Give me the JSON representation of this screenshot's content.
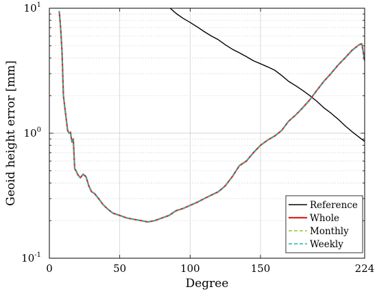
{
  "chart_data": {
    "type": "line",
    "xlabel": "Degree",
    "ylabel": "Geoid height error [mm]",
    "xlim": [
      0,
      224
    ],
    "ylim": [
      0.1,
      10
    ],
    "yscale": "log",
    "grid": true,
    "legend_position": "bottom-right",
    "xticks": [
      0,
      50,
      100,
      150,
      224
    ],
    "xtick_labels": [
      "0",
      "50",
      "100",
      "150",
      "224"
    ],
    "yticks": [
      0.1,
      1,
      10
    ],
    "ytick_labels": [
      "10",
      "10",
      "10"
    ],
    "ytick_exponents": [
      "-1",
      "0",
      "1"
    ],
    "series": [
      {
        "name": "Reference",
        "color": "#000000",
        "dash": "solid",
        "x": [
          85,
          90,
          95,
          100,
          105,
          110,
          115,
          120,
          125,
          130,
          135,
          140,
          145,
          150,
          155,
          160,
          165,
          170,
          175,
          180,
          185,
          190,
          195,
          200,
          205,
          210,
          215,
          220,
          224
        ],
        "y": [
          10.2,
          9.1,
          8.3,
          7.7,
          7.1,
          6.5,
          6.0,
          5.6,
          5.1,
          4.7,
          4.4,
          4.1,
          3.8,
          3.6,
          3.4,
          3.2,
          2.9,
          2.6,
          2.4,
          2.2,
          2.0,
          1.8,
          1.6,
          1.45,
          1.3,
          1.15,
          1.03,
          0.93,
          0.86
        ]
      },
      {
        "name": "Whole",
        "color": "#e02020",
        "dash": "solid",
        "x": [
          7,
          8,
          9,
          10,
          11,
          12,
          13,
          14,
          15,
          16,
          17,
          18,
          19,
          20,
          22,
          24,
          26,
          28,
          30,
          32,
          35,
          38,
          41,
          45,
          50,
          55,
          60,
          65,
          70,
          75,
          80,
          85,
          90,
          95,
          100,
          105,
          110,
          115,
          120,
          125,
          130,
          135,
          140,
          145,
          150,
          155,
          160,
          165,
          170,
          175,
          180,
          185,
          190,
          195,
          200,
          205,
          210,
          215,
          220,
          222,
          224
        ],
        "y": [
          9.5,
          7.0,
          4.5,
          2.0,
          1.6,
          1.3,
          1.05,
          1.0,
          1.02,
          0.85,
          0.9,
          0.52,
          0.5,
          0.47,
          0.44,
          0.47,
          0.45,
          0.38,
          0.34,
          0.33,
          0.3,
          0.27,
          0.25,
          0.23,
          0.22,
          0.21,
          0.205,
          0.2,
          0.195,
          0.2,
          0.21,
          0.22,
          0.24,
          0.25,
          0.265,
          0.28,
          0.3,
          0.32,
          0.34,
          0.38,
          0.45,
          0.55,
          0.6,
          0.7,
          0.8,
          0.88,
          0.95,
          1.05,
          1.25,
          1.4,
          1.6,
          1.85,
          2.2,
          2.6,
          3.0,
          3.5,
          4.0,
          4.6,
          5.1,
          5.2,
          3.8
        ]
      },
      {
        "name": "Monthly",
        "color": "#8fc43a",
        "dash": "dashed",
        "x": [
          7,
          8,
          9,
          10,
          11,
          12,
          13,
          14,
          15,
          16,
          17,
          18,
          19,
          20,
          22,
          24,
          26,
          28,
          30,
          32,
          35,
          38,
          41,
          45,
          50,
          55,
          60,
          65,
          70,
          75,
          80,
          85,
          90,
          95,
          100,
          105,
          110,
          115,
          120,
          125,
          130,
          135,
          140,
          145,
          150,
          155,
          160,
          165,
          170,
          175,
          180,
          185,
          190,
          195,
          200,
          205,
          210,
          215,
          220,
          222,
          224
        ],
        "y": [
          9.5,
          7.0,
          4.5,
          2.0,
          1.6,
          1.3,
          1.05,
          1.0,
          1.02,
          0.85,
          0.9,
          0.52,
          0.5,
          0.47,
          0.44,
          0.47,
          0.45,
          0.38,
          0.34,
          0.33,
          0.3,
          0.27,
          0.25,
          0.23,
          0.22,
          0.21,
          0.205,
          0.2,
          0.195,
          0.2,
          0.21,
          0.22,
          0.24,
          0.25,
          0.265,
          0.28,
          0.3,
          0.32,
          0.34,
          0.38,
          0.45,
          0.55,
          0.6,
          0.7,
          0.8,
          0.88,
          0.95,
          1.05,
          1.25,
          1.4,
          1.6,
          1.85,
          2.2,
          2.6,
          3.0,
          3.5,
          4.0,
          4.6,
          5.1,
          5.2,
          3.8
        ]
      },
      {
        "name": "Weekly",
        "color": "#1ab3b3",
        "dash": "dashed",
        "x": [
          7,
          8,
          9,
          10,
          11,
          12,
          13,
          14,
          15,
          16,
          17,
          18,
          19,
          20,
          22,
          24,
          26,
          28,
          30,
          32,
          35,
          38,
          41,
          45,
          50,
          55,
          60,
          65,
          70,
          75,
          80,
          85,
          90,
          95,
          100,
          105,
          110,
          115,
          120,
          125,
          130,
          135,
          140,
          145,
          150,
          155,
          160,
          165,
          170,
          175,
          180,
          185,
          190,
          195,
          200,
          205,
          210,
          215,
          220,
          222,
          224
        ],
        "y": [
          9.5,
          7.0,
          4.5,
          2.0,
          1.6,
          1.3,
          1.05,
          1.0,
          1.02,
          0.85,
          0.9,
          0.52,
          0.5,
          0.47,
          0.44,
          0.47,
          0.45,
          0.38,
          0.34,
          0.33,
          0.3,
          0.27,
          0.25,
          0.23,
          0.22,
          0.21,
          0.205,
          0.2,
          0.195,
          0.2,
          0.21,
          0.22,
          0.24,
          0.25,
          0.265,
          0.28,
          0.3,
          0.32,
          0.34,
          0.38,
          0.45,
          0.55,
          0.6,
          0.7,
          0.8,
          0.88,
          0.95,
          1.05,
          1.25,
          1.4,
          1.6,
          1.85,
          2.2,
          2.6,
          3.0,
          3.5,
          4.0,
          4.6,
          5.1,
          5.2,
          3.8
        ]
      }
    ]
  }
}
